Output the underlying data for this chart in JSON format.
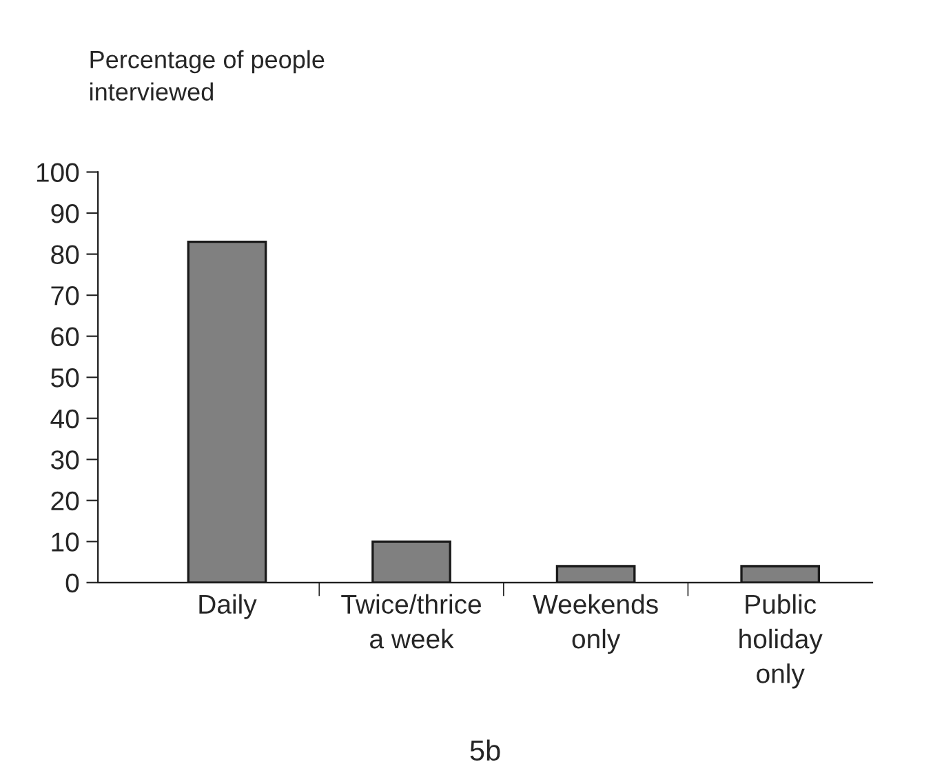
{
  "chart_data": {
    "type": "bar",
    "ylabel": "Percentage of people\ninterviewed",
    "categories": [
      "Daily",
      "Twice/thrice\na week",
      "Weekends\nonly",
      "Public\nholiday\nonly"
    ],
    "values": [
      83,
      10,
      4,
      4
    ],
    "color": "#808080",
    "ylim": [
      0,
      100
    ],
    "yticks": [
      0,
      10,
      20,
      30,
      40,
      50,
      60,
      70,
      80,
      90,
      100
    ],
    "grid": false,
    "annotations": [
      "5b"
    ]
  }
}
